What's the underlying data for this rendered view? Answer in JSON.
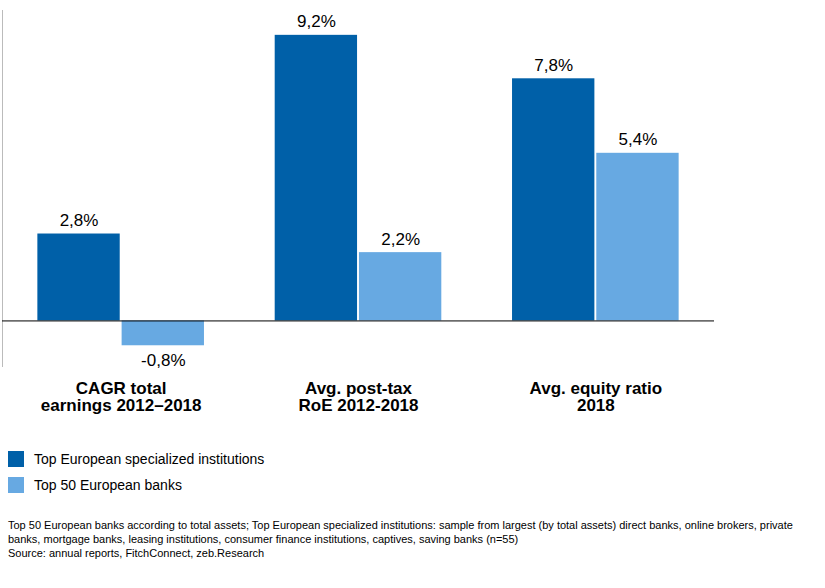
{
  "chart_data": {
    "type": "bar",
    "categories": [
      "CAGR total\nearnings 2012–2018",
      "Avg. post-tax\nRoE 2012-2018",
      "Avg. equity ratio\n2018"
    ],
    "series": [
      {
        "name": "Top European specialized institutions",
        "color": "#0060a8",
        "values": [
          2.8,
          9.2,
          7.8
        ],
        "value_labels": [
          "2,8%",
          "9,2%",
          "7,8%"
        ]
      },
      {
        "name": "Top 50 European banks",
        "color": "#67a9e2",
        "values": [
          -0.8,
          2.2,
          5.4
        ],
        "value_labels": [
          "-0,8%",
          "2,2%",
          "5,4%"
        ]
      }
    ],
    "ylim": [
      -1.5,
      10
    ],
    "tick_labels": "x",
    "data_labels": true,
    "legend": "bottom",
    "footnote": "Top 50 European banks according to total assets; Top European specialized institutions: sample from largest (by total assets) direct banks, online brokers, private banks, mortgage banks, leasing institutions, consumer finance institutions, captives, saving banks (n=55)",
    "source": "Source: annual reports, FitchConnect, zeb.Research"
  }
}
